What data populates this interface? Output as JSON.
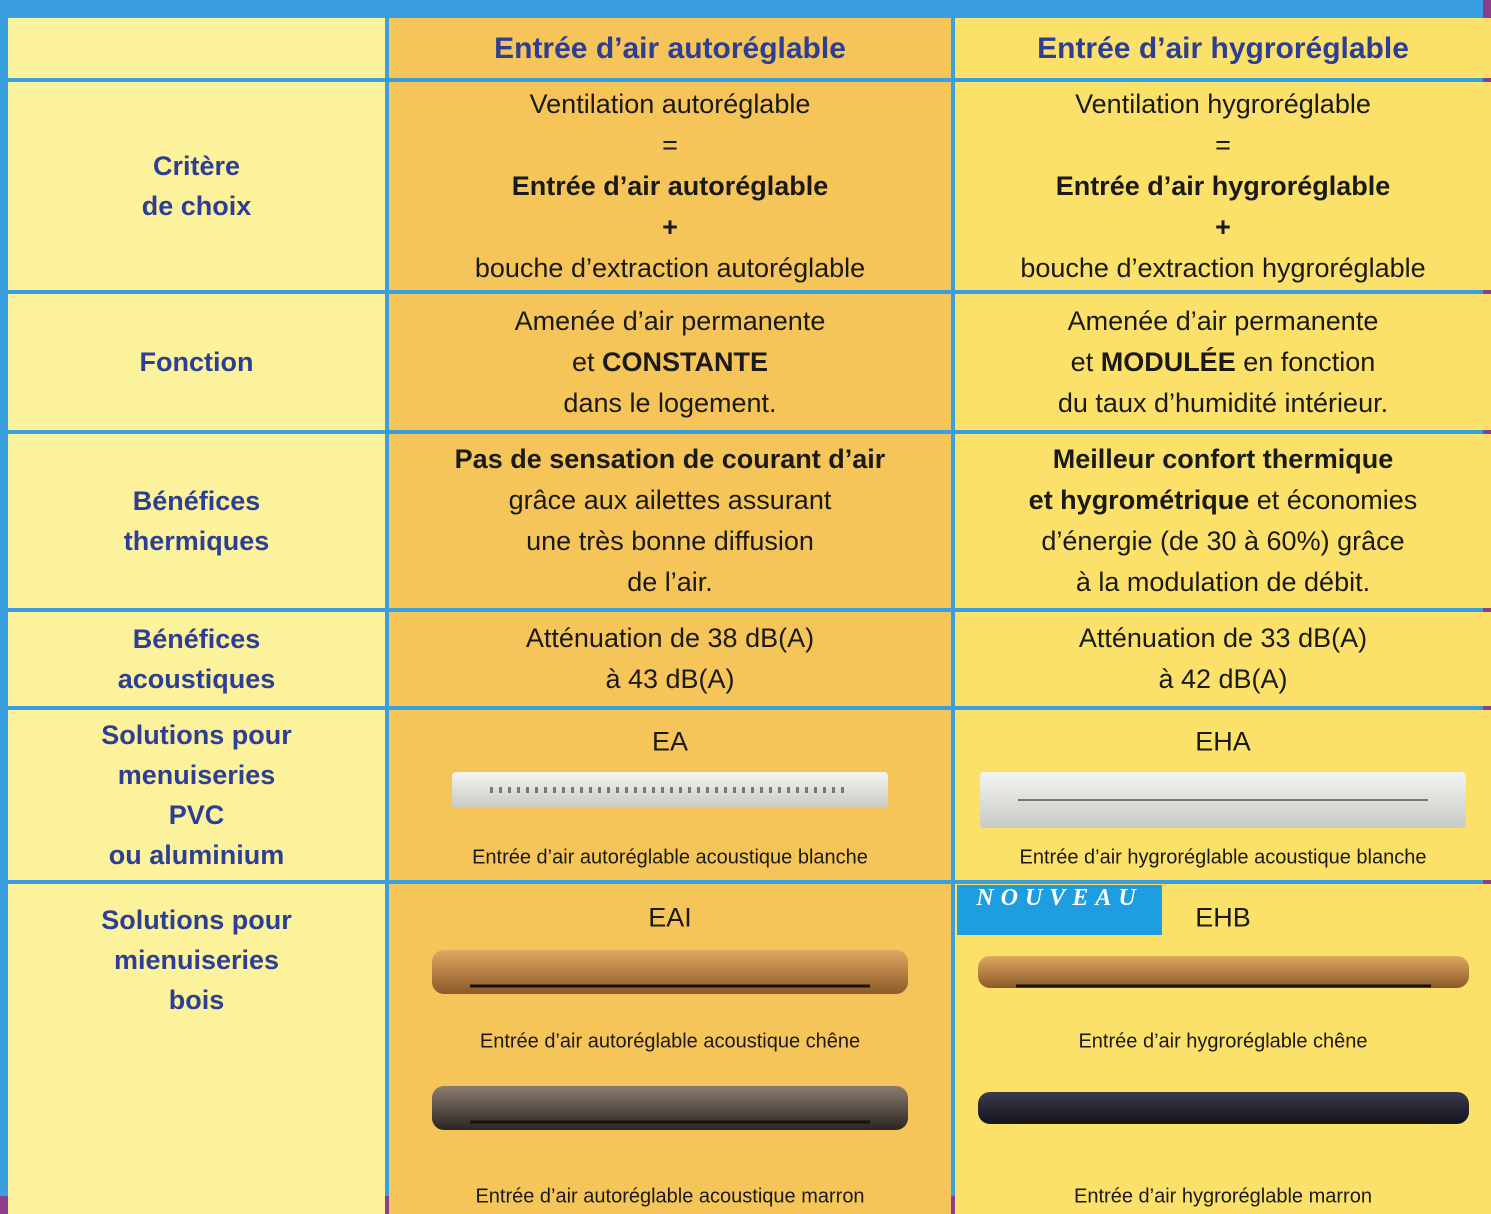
{
  "header": {
    "col1": "Entrée d’air autoréglable",
    "col2": "Entrée d’air hygroréglable"
  },
  "rows": [
    {
      "label": [
        "Critère",
        "de choix"
      ],
      "cells": [
        {
          "lines": [
            [
              {
                "text": "Ventilation autoréglable"
              }
            ],
            [
              {
                "text": "="
              }
            ],
            [
              {
                "text": "Entrée d’air autoréglable",
                "bold": true
              }
            ],
            [
              {
                "text": "+",
                "bold": true
              }
            ],
            [
              {
                "text": "bouche d’extraction autoréglable"
              }
            ]
          ]
        },
        {
          "lines": [
            [
              {
                "text": "Ventilation hygroréglable"
              }
            ],
            [
              {
                "text": "="
              }
            ],
            [
              {
                "text": "Entrée d’air hygroréglable",
                "bold": true
              }
            ],
            [
              {
                "text": "+",
                "bold": true
              }
            ],
            [
              {
                "text": "bouche d’extraction hygroréglable"
              }
            ]
          ]
        }
      ]
    },
    {
      "label": [
        "Fonction"
      ],
      "cells": [
        {
          "lines": [
            [
              {
                "text": "Amenée d’air permanente"
              }
            ],
            [
              {
                "text": "et "
              },
              {
                "text": "CONSTANTE",
                "bold": true
              }
            ],
            [
              {
                "text": "dans le logement."
              }
            ]
          ]
        },
        {
          "lines": [
            [
              {
                "text": "Amenée d’air permanente"
              }
            ],
            [
              {
                "text": "et "
              },
              {
                "text": "MODULÉE",
                "bold": true
              },
              {
                "text": " en fonction"
              }
            ],
            [
              {
                "text": "du taux d’humidité intérieur."
              }
            ]
          ]
        }
      ]
    },
    {
      "label": [
        "Bénéfices",
        "thermiques"
      ],
      "cells": [
        {
          "lines": [
            [
              {
                "text": "Pas de sensation de courant d’air",
                "bold": true
              }
            ],
            [
              {
                "text": "grâce aux ailettes assurant"
              }
            ],
            [
              {
                "text": "une très bonne diffusion"
              }
            ],
            [
              {
                "text": "de l’air."
              }
            ]
          ]
        },
        {
          "lines": [
            [
              {
                "text": "Meilleur confort thermique",
                "bold": true
              }
            ],
            [
              {
                "text": "et hygrométrique",
                "bold": true
              },
              {
                "text": " et économies"
              }
            ],
            [
              {
                "text": "d’énergie (de 30 à 60%) grâce"
              }
            ],
            [
              {
                "text": "à la modulation de débit."
              }
            ]
          ]
        }
      ]
    },
    {
      "label": [
        "Bénéfices",
        "acoustiques"
      ],
      "cells": [
        {
          "lines": [
            [
              {
                "text": "Atténuation de 38 dB(A)"
              }
            ],
            [
              {
                "text": "à 43 dB(A)"
              }
            ]
          ]
        },
        {
          "lines": [
            [
              {
                "text": "Atténuation de 33 dB(A)"
              }
            ],
            [
              {
                "text": "à 42 dB(A)"
              }
            ]
          ]
        }
      ]
    },
    {
      "label": [
        "Solutions pour",
        "menuiseries",
        "PVC",
        "ou aluminium"
      ],
      "cells": [
        {
          "code": "EA",
          "products": [
            {
              "caption": "Entrée d’air autoréglable acoustique blanche"
            }
          ]
        },
        {
          "code": "EHA",
          "products": [
            {
              "caption": "Entrée d’air hygroréglable acoustique blanche"
            }
          ]
        }
      ]
    },
    {
      "label": [
        "Solutions pour",
        "mienuiseries",
        "bois"
      ],
      "cells": [
        {
          "code": "EAI",
          "products": [
            {
              "caption": "Entrée d’air autoréglable acoustique chêne"
            },
            {
              "caption": "Entrée d’air autoréglable acoustique marron"
            }
          ]
        },
        {
          "badge": "NOUVEAU",
          "code": "EHB",
          "products": [
            {
              "caption": "Entrée d’air hygroréglable chêne"
            },
            {
              "caption": "Entrée d’air hygroréglable marron"
            }
          ]
        }
      ]
    }
  ]
}
